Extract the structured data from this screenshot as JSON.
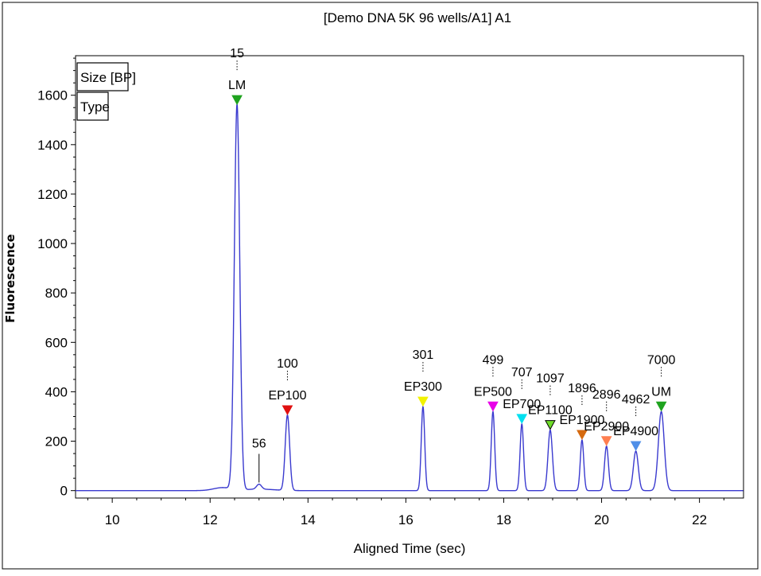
{
  "chart_data": {
    "type": "line",
    "title": "[Demo DNA 5K 96 wells/A1] A1",
    "xlabel": "Aligned Time (sec)",
    "ylabel": "Fluorescence",
    "xlim": [
      9.25,
      22.9
    ],
    "ylim": [
      -30,
      1760
    ],
    "x_ticks": [
      10,
      12,
      14,
      16,
      18,
      20,
      22
    ],
    "y_ticks": [
      0,
      200,
      400,
      600,
      800,
      1000,
      1200,
      1400,
      1600
    ],
    "legend": [
      "Size [BP]",
      "Type"
    ],
    "legend_position": "top-left",
    "series_color": "#3a3acf",
    "baseline": 0,
    "peaks": [
      {
        "x": 12.55,
        "height": 1560,
        "width": 0.055,
        "size": "15",
        "type": "LM",
        "color": "#1fa31f"
      },
      {
        "x": 13.0,
        "height": 20,
        "width": 0.05,
        "size": "56",
        "type": "",
        "color": ""
      },
      {
        "x": 13.58,
        "height": 305,
        "width": 0.045,
        "size": "100",
        "type": "EP100",
        "color": "#e01010"
      },
      {
        "x": 16.35,
        "height": 340,
        "width": 0.035,
        "size": "301",
        "type": "EP300",
        "color": "#f2f200"
      },
      {
        "x": 17.78,
        "height": 320,
        "width": 0.035,
        "size": "499",
        "type": "EP500",
        "color": "#e800e8"
      },
      {
        "x": 18.37,
        "height": 270,
        "width": 0.035,
        "size": "707",
        "type": "EP700",
        "color": "#00e0f0"
      },
      {
        "x": 18.95,
        "height": 245,
        "width": 0.045,
        "size": "1097",
        "type": "EP1100",
        "color": "#6fdc2a"
      },
      {
        "x": 19.6,
        "height": 205,
        "width": 0.035,
        "size": "1896",
        "type": "EP1900",
        "color": "#d56a10"
      },
      {
        "x": 20.1,
        "height": 180,
        "width": 0.04,
        "size": "2896",
        "type": "EP2900",
        "color": "#ff7f50"
      },
      {
        "x": 20.7,
        "height": 160,
        "width": 0.05,
        "size": "4962",
        "type": "EP4900",
        "color": "#4f8fe8"
      },
      {
        "x": 21.22,
        "height": 320,
        "width": 0.06,
        "size": "7000",
        "type": "UM",
        "color": "#1fa31f"
      }
    ]
  }
}
